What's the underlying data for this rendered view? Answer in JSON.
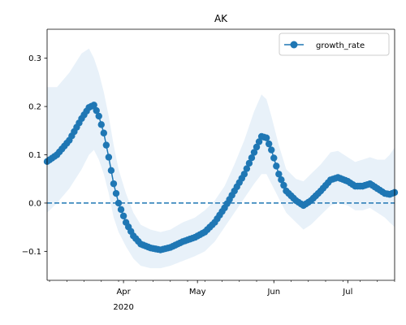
{
  "chart_data": {
    "type": "line",
    "title": "AK",
    "xlabel": "",
    "ylabel": "",
    "x_start": "2020-03-01",
    "x_end": "2020-07-20",
    "ylim": [
      -0.16,
      0.36
    ],
    "grid": false,
    "legend_placement": "top-right",
    "x_ticks": [
      {
        "date": "2020-04-01",
        "label": "Apr",
        "sublabel": "2020"
      },
      {
        "date": "2020-05-01",
        "label": "May",
        "sublabel": ""
      },
      {
        "date": "2020-06-01",
        "label": "Jun",
        "sublabel": ""
      },
      {
        "date": "2020-07-01",
        "label": "Jul",
        "sublabel": ""
      }
    ],
    "y_ticks": [
      {
        "value": -0.1,
        "label": "−0.1"
      },
      {
        "value": 0.0,
        "label": "0.0"
      },
      {
        "value": 0.1,
        "label": "0.1"
      },
      {
        "value": 0.2,
        "label": "0.2"
      },
      {
        "value": 0.3,
        "label": "0.3"
      }
    ],
    "reference_line": {
      "y": 0.0,
      "style": "dashed",
      "color": "#1f77b4"
    },
    "series": [
      {
        "name": "growth_rate",
        "color": "#1f77b4",
        "band_color": "#c6dbef",
        "band_opacity": 0.4,
        "anchors": [
          {
            "date": "2020-03-01",
            "value": 0.086,
            "lower": -0.02,
            "upper": 0.24
          },
          {
            "date": "2020-03-05",
            "value": 0.1,
            "lower": 0.0,
            "upper": 0.24
          },
          {
            "date": "2020-03-10",
            "value": 0.13,
            "lower": 0.03,
            "upper": 0.27
          },
          {
            "date": "2020-03-15",
            "value": 0.175,
            "lower": 0.07,
            "upper": 0.31
          },
          {
            "date": "2020-03-18",
            "value": 0.198,
            "lower": 0.1,
            "upper": 0.32
          },
          {
            "date": "2020-03-20",
            "value": 0.203,
            "lower": 0.11,
            "upper": 0.3
          },
          {
            "date": "2020-03-22",
            "value": 0.18,
            "lower": 0.09,
            "upper": 0.27
          },
          {
            "date": "2020-03-24",
            "value": 0.145,
            "lower": 0.06,
            "upper": 0.23
          },
          {
            "date": "2020-03-26",
            "value": 0.095,
            "lower": 0.02,
            "upper": 0.18
          },
          {
            "date": "2020-03-28",
            "value": 0.04,
            "lower": -0.03,
            "upper": 0.12
          },
          {
            "date": "2020-03-30",
            "value": 0.0,
            "lower": -0.06,
            "upper": 0.07
          },
          {
            "date": "2020-04-02",
            "value": -0.04,
            "lower": -0.09,
            "upper": 0.02
          },
          {
            "date": "2020-04-05",
            "value": -0.068,
            "lower": -0.115,
            "upper": -0.02
          },
          {
            "date": "2020-04-08",
            "value": -0.085,
            "lower": -0.13,
            "upper": -0.045
          },
          {
            "date": "2020-04-12",
            "value": -0.093,
            "lower": -0.135,
            "upper": -0.055
          },
          {
            "date": "2020-04-16",
            "value": -0.097,
            "lower": -0.135,
            "upper": -0.06
          },
          {
            "date": "2020-04-20",
            "value": -0.092,
            "lower": -0.13,
            "upper": -0.055
          },
          {
            "date": "2020-04-25",
            "value": -0.08,
            "lower": -0.12,
            "upper": -0.04
          },
          {
            "date": "2020-04-30",
            "value": -0.071,
            "lower": -0.11,
            "upper": -0.03
          },
          {
            "date": "2020-05-04",
            "value": -0.06,
            "lower": -0.1,
            "upper": -0.015
          },
          {
            "date": "2020-05-08",
            "value": -0.04,
            "lower": -0.08,
            "upper": 0.005
          },
          {
            "date": "2020-05-12",
            "value": -0.01,
            "lower": -0.05,
            "upper": 0.035
          },
          {
            "date": "2020-05-16",
            "value": 0.025,
            "lower": -0.02,
            "upper": 0.08
          },
          {
            "date": "2020-05-20",
            "value": 0.06,
            "lower": 0.01,
            "upper": 0.13
          },
          {
            "date": "2020-05-24",
            "value": 0.105,
            "lower": 0.04,
            "upper": 0.19
          },
          {
            "date": "2020-05-27",
            "value": 0.138,
            "lower": 0.06,
            "upper": 0.225
          },
          {
            "date": "2020-05-29",
            "value": 0.135,
            "lower": 0.06,
            "upper": 0.215
          },
          {
            "date": "2020-05-31",
            "value": 0.11,
            "lower": 0.04,
            "upper": 0.18
          },
          {
            "date": "2020-06-03",
            "value": 0.06,
            "lower": 0.01,
            "upper": 0.12
          },
          {
            "date": "2020-06-06",
            "value": 0.025,
            "lower": -0.02,
            "upper": 0.07
          },
          {
            "date": "2020-06-10",
            "value": 0.005,
            "lower": -0.04,
            "upper": 0.05
          },
          {
            "date": "2020-06-13",
            "value": -0.005,
            "lower": -0.055,
            "upper": 0.045
          },
          {
            "date": "2020-06-16",
            "value": 0.005,
            "lower": -0.045,
            "upper": 0.06
          },
          {
            "date": "2020-06-20",
            "value": 0.025,
            "lower": -0.025,
            "upper": 0.08
          },
          {
            "date": "2020-06-24",
            "value": 0.048,
            "lower": -0.005,
            "upper": 0.105
          },
          {
            "date": "2020-06-27",
            "value": 0.053,
            "lower": 0.0,
            "upper": 0.108
          },
          {
            "date": "2020-07-01",
            "value": 0.045,
            "lower": -0.005,
            "upper": 0.095
          },
          {
            "date": "2020-07-04",
            "value": 0.035,
            "lower": -0.015,
            "upper": 0.085
          },
          {
            "date": "2020-07-07",
            "value": 0.035,
            "lower": -0.015,
            "upper": 0.09
          },
          {
            "date": "2020-07-10",
            "value": 0.04,
            "lower": -0.01,
            "upper": 0.095
          },
          {
            "date": "2020-07-13",
            "value": 0.03,
            "lower": -0.02,
            "upper": 0.09
          },
          {
            "date": "2020-07-16",
            "value": 0.02,
            "lower": -0.03,
            "upper": 0.09
          },
          {
            "date": "2020-07-18",
            "value": 0.018,
            "lower": -0.04,
            "upper": 0.1
          },
          {
            "date": "2020-07-20",
            "value": 0.022,
            "lower": -0.05,
            "upper": 0.115
          }
        ]
      }
    ]
  }
}
